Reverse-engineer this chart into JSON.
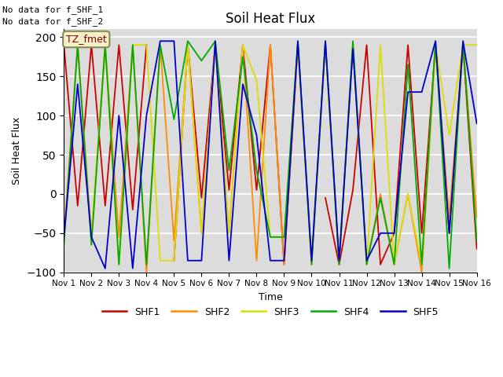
{
  "title": "Soil Heat Flux",
  "xlabel": "Time",
  "ylabel": "Soil Heat Flux",
  "ylim": [
    -100,
    210
  ],
  "yticks": [
    -100,
    -50,
    0,
    50,
    100,
    150,
    200
  ],
  "note_lines": [
    "No data for f_SHF_1",
    "No data for f_SHF_2"
  ],
  "legend_label": "TZ_fmet",
  "background_color": "#dcdcdc",
  "series": {
    "SHF1": {
      "color": "#cc0000",
      "x": [
        1.0,
        1.5,
        2.0,
        2.5,
        3.0,
        3.5,
        4.0,
        4.5,
        5.0,
        5.5,
        6.0,
        6.5,
        7.0,
        7.5,
        8.0,
        8.5,
        9.0,
        9.5,
        10.0,
        10.5,
        11.0,
        11.5,
        12.0,
        12.5,
        13.0,
        13.5,
        14.0,
        14.5,
        15.0,
        15.5,
        16.0
      ],
      "y": [
        190,
        -15,
        190,
        -15,
        190,
        -20,
        190,
        null,
        -85,
        190,
        -5,
        190,
        5,
        190,
        5,
        190,
        -90,
        190,
        null,
        -5,
        -90,
        5,
        190,
        -90,
        -50,
        190,
        -50,
        190,
        -50,
        190,
        -70
      ]
    },
    "SHF2": {
      "color": "#ff8c00",
      "x": [
        1.0,
        1.5,
        2.0,
        2.5,
        3.0,
        3.5,
        4.0,
        4.5,
        5.0,
        5.5,
        6.0,
        6.5,
        7.0,
        7.5,
        8.0,
        8.5,
        9.0,
        9.5,
        10.0,
        10.5,
        11.0,
        11.5,
        12.0,
        12.5,
        13.0,
        13.5,
        14.0,
        14.5,
        15.0,
        15.5,
        16.0
      ],
      "y": [
        -55,
        190,
        -55,
        190,
        -55,
        190,
        -100,
        190,
        -60,
        190,
        -50,
        190,
        -50,
        190,
        -85,
        190,
        -90,
        190,
        -90,
        190,
        -90,
        190,
        -90,
        0,
        -90,
        0,
        -100,
        190,
        -30,
        190,
        -30
      ]
    },
    "SHF3": {
      "color": "#dddd00",
      "x": [
        1.0,
        1.5,
        2.0,
        2.5,
        3.0,
        3.5,
        4.0,
        4.5,
        5.0,
        5.5,
        6.0,
        6.5,
        7.0,
        7.5,
        8.0,
        8.5,
        9.0,
        9.5,
        10.0,
        10.5,
        11.0,
        11.5,
        12.0,
        12.5,
        13.0,
        13.5,
        14.0,
        14.5,
        15.0,
        15.5,
        16.0
      ],
      "y": [
        190,
        null,
        -50,
        190,
        -90,
        190,
        190,
        -85,
        -85,
        190,
        -50,
        190,
        -50,
        190,
        145,
        -55,
        -55,
        190,
        -85,
        190,
        -85,
        190,
        -90,
        190,
        -90,
        0,
        -90,
        190,
        75,
        190,
        190
      ]
    },
    "SHF4": {
      "color": "#00aa00",
      "x": [
        1.0,
        1.5,
        2.0,
        2.5,
        3.0,
        3.5,
        4.0,
        4.5,
        5.0,
        5.5,
        6.0,
        6.5,
        7.0,
        7.5,
        8.0,
        8.5,
        9.0,
        9.5,
        10.0,
        10.5,
        11.0,
        11.5,
        12.0,
        12.5,
        13.0,
        13.5,
        14.0,
        14.5,
        15.0,
        15.5,
        16.0
      ],
      "y": [
        -65,
        190,
        -65,
        190,
        -90,
        190,
        -90,
        190,
        95,
        195,
        170,
        195,
        30,
        175,
        30,
        -55,
        -55,
        195,
        -90,
        195,
        -90,
        195,
        -90,
        -5,
        -90,
        165,
        -90,
        195,
        -95,
        195,
        -60
      ]
    },
    "SHF5": {
      "color": "#0000cc",
      "x": [
        1.0,
        1.5,
        2.0,
        2.5,
        3.0,
        3.5,
        4.0,
        4.5,
        5.0,
        5.5,
        6.0,
        6.5,
        7.0,
        7.5,
        8.0,
        8.5,
        9.0,
        9.5,
        10.0,
        10.5,
        11.0,
        11.5,
        12.0,
        12.5,
        13.0,
        13.5,
        14.0,
        14.5,
        15.0,
        15.5,
        16.0
      ],
      "y": [
        -55,
        140,
        -55,
        -95,
        100,
        -95,
        100,
        195,
        195,
        -85,
        -85,
        195,
        -85,
        140,
        75,
        -85,
        -85,
        195,
        -85,
        195,
        -85,
        185,
        -85,
        -50,
        -50,
        130,
        130,
        195,
        -50,
        195,
        90
      ]
    }
  },
  "xtick_labels": [
    "Nov 1",
    "Nov 2",
    "Nov 3",
    "Nov 4",
    "Nov 5",
    "Nov 6",
    "Nov 7",
    "Nov 8",
    "Nov 9",
    "Nov 10",
    "Nov 11",
    "Nov 12",
    "Nov 13",
    "Nov 14",
    "Nov 15",
    "Nov 16"
  ],
  "xtick_positions": [
    1,
    2,
    3,
    4,
    5,
    6,
    7,
    8,
    9,
    10,
    11,
    12,
    13,
    14,
    15,
    16
  ],
  "figsize": [
    6.4,
    4.8
  ],
  "dpi": 100
}
